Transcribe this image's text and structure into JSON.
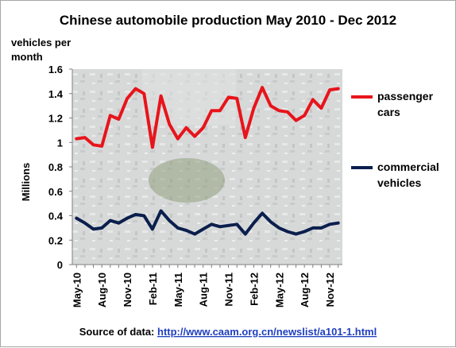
{
  "chart_data": {
    "type": "line",
    "title": "Chinese automobile production May 2010 - Dec 2012",
    "ylabel_top": "vehicles per month",
    "ylabel": "Millions",
    "ylim": [
      0,
      1.6
    ],
    "yticks": [
      "0",
      "0.2",
      "0.4",
      "0.6",
      "0.8",
      "1",
      "1.2",
      "1.4",
      "1.6"
    ],
    "x": [
      "May-10",
      "Jun-10",
      "Jul-10",
      "Aug-10",
      "Sep-10",
      "Oct-10",
      "Nov-10",
      "Dec-10",
      "Jan-11",
      "Feb-11",
      "Mar-11",
      "Apr-11",
      "May-11",
      "Jun-11",
      "Jul-11",
      "Aug-11",
      "Sep-11",
      "Oct-11",
      "Nov-11",
      "Dec-11",
      "Jan-12",
      "Feb-12",
      "Mar-12",
      "Apr-12",
      "May-12",
      "Jun-12",
      "Jul-12",
      "Aug-12",
      "Sep-12",
      "Oct-12",
      "Nov-12",
      "Dec-12"
    ],
    "xtick_labels": [
      "May-10",
      "Aug-10",
      "Nov-10",
      "Feb-11",
      "May-11",
      "Aug-11",
      "Nov-11",
      "Feb-12",
      "May-12",
      "Aug-12",
      "Nov-12"
    ],
    "series": [
      {
        "name": "passenger cars",
        "color": "#e8141b",
        "values": [
          1.03,
          1.04,
          0.98,
          0.97,
          1.22,
          1.19,
          1.36,
          1.44,
          1.4,
          0.96,
          1.38,
          1.15,
          1.03,
          1.12,
          1.05,
          1.12,
          1.26,
          1.26,
          1.37,
          1.36,
          1.04,
          1.28,
          1.45,
          1.3,
          1.26,
          1.25,
          1.18,
          1.22,
          1.35,
          1.28,
          1.43,
          1.44
        ]
      },
      {
        "name": "commercial vehicles",
        "color": "#0b1f4d",
        "values": [
          0.38,
          0.34,
          0.29,
          0.3,
          0.36,
          0.34,
          0.38,
          0.41,
          0.4,
          0.29,
          0.44,
          0.36,
          0.3,
          0.28,
          0.25,
          0.29,
          0.33,
          0.31,
          0.32,
          0.33,
          0.25,
          0.34,
          0.42,
          0.35,
          0.3,
          0.27,
          0.25,
          0.27,
          0.3,
          0.3,
          0.33,
          0.34
        ]
      }
    ],
    "legend": [
      "passenger",
      "cars",
      "commercial",
      "vehicles"
    ],
    "source_prefix": "Source of data: ",
    "source_link": "http://www.caam.org.cn/newslist/a101-1.html",
    "colors": {
      "plot_background": "#b9bcbc"
    }
  }
}
